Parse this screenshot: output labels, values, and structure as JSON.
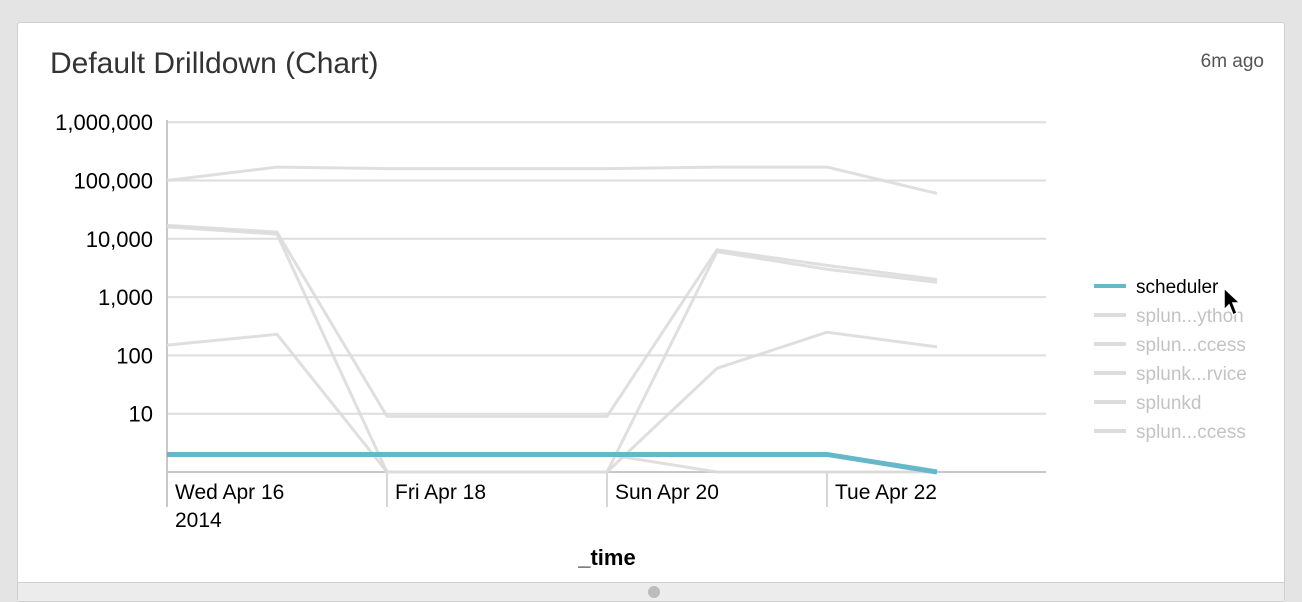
{
  "panel": {
    "title": "Default Drilldown (Chart)",
    "time_ago": "6m ago"
  },
  "chart_data": {
    "type": "line",
    "title": "",
    "xlabel": "_time",
    "ylabel": "",
    "y_scale": "log",
    "ylim": [
      1,
      1000000
    ],
    "grid": true,
    "legend_position": "right",
    "y_ticks": [
      "10",
      "100",
      "1,000",
      "10,000",
      "100,000",
      "1,000,000"
    ],
    "x": [
      "2014-04-16",
      "2014-04-17",
      "2014-04-18",
      "2014-04-19",
      "2014-04-20",
      "2014-04-21",
      "2014-04-22",
      "2014-04-23"
    ],
    "x_ticks": [
      {
        "date": "2014-04-16",
        "line1": "Wed Apr 16",
        "line2": "2014"
      },
      {
        "date": "2014-04-18",
        "line1": "Fri Apr 18",
        "line2": ""
      },
      {
        "date": "2014-04-20",
        "line1": "Sun Apr 20",
        "line2": ""
      },
      {
        "date": "2014-04-22",
        "line1": "Tue Apr 22",
        "line2": ""
      }
    ],
    "highlighted_series": "scheduler",
    "series": [
      {
        "name": "splun...ccess",
        "color": "#dcdcdc",
        "values": [
          100000,
          170000,
          160000,
          160000,
          160000,
          170000,
          170000,
          60000
        ]
      },
      {
        "name": "splun...ython",
        "color": "#dcdcdc",
        "values": [
          17000,
          13000,
          9,
          9,
          9,
          6500,
          3500,
          2000
        ]
      },
      {
        "name": "splun...ccess",
        "color": "#dcdcdc",
        "values": [
          16000,
          12000,
          1,
          1,
          1,
          6000,
          3000,
          1800
        ]
      },
      {
        "name": "splunk...rvice",
        "color": "#dcdcdc",
        "values": [
          150,
          230,
          1,
          1,
          1,
          60,
          250,
          140
        ]
      },
      {
        "name": "splunkd",
        "color": "#dcdcdc",
        "values": [
          2,
          2,
          2,
          2,
          2,
          1,
          1,
          1
        ]
      },
      {
        "name": "scheduler",
        "color": "#65b8c9",
        "values": [
          2,
          2,
          2,
          2,
          2,
          2,
          2,
          1
        ]
      }
    ],
    "legend": [
      {
        "label": "scheduler",
        "color": "#65b8c9",
        "active": true
      },
      {
        "label": "splun...ython",
        "color": "#dcdcdc",
        "active": false
      },
      {
        "label": "splun...ccess",
        "color": "#dcdcdc",
        "active": false
      },
      {
        "label": "splunk...rvice",
        "color": "#dcdcdc",
        "active": false
      },
      {
        "label": "splunkd",
        "color": "#dcdcdc",
        "active": false
      },
      {
        "label": "splun...ccess",
        "color": "#dcdcdc",
        "active": false
      }
    ]
  }
}
